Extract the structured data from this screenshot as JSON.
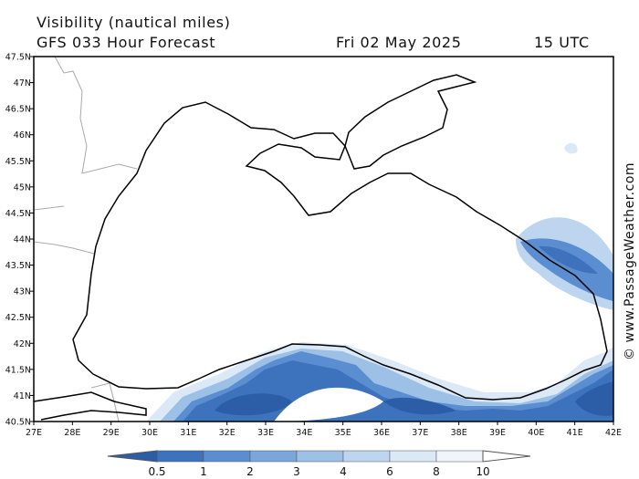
{
  "header": {
    "title": "Visibility (nautical miles)",
    "model": "GFS 033 Hour Forecast",
    "date": "Fri 02 May 2025",
    "time": "15 UTC"
  },
  "map": {
    "lon_labels": [
      "27E",
      "28E",
      "29E",
      "30E",
      "31E",
      "32E",
      "33E",
      "34E",
      "35E",
      "36E",
      "37E",
      "38E",
      "39E",
      "40E",
      "41E",
      "42E"
    ],
    "lat_labels": [
      "47.5N",
      "47N",
      "46.5N",
      "46N",
      "45.5N",
      "45N",
      "44.5N",
      "44N",
      "43.5N",
      "43N",
      "42.5N",
      "42N",
      "41.5N",
      "41N",
      "40.5N"
    ]
  },
  "colorbar": {
    "labels": [
      0.5,
      1,
      2,
      3,
      4,
      6,
      8,
      10
    ]
  },
  "credit": "© www.PassageWeather.com"
}
